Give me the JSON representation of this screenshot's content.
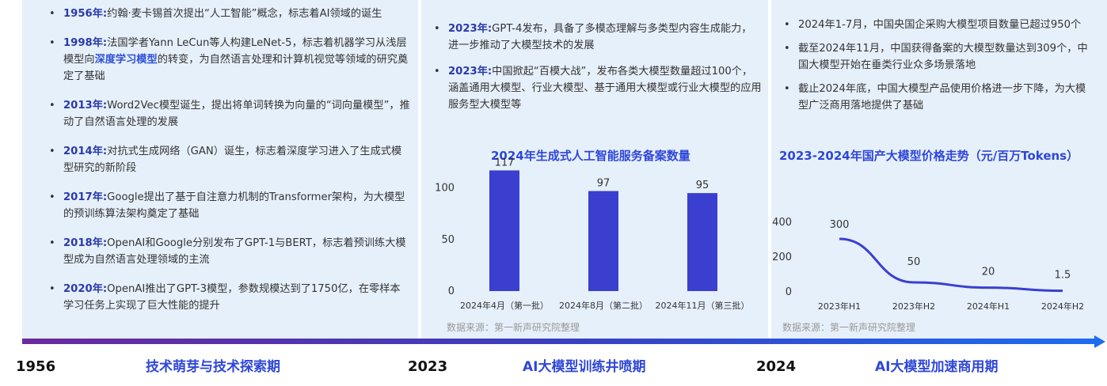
{
  "panel1": {
    "items": [
      {
        "year": "1956年:",
        "text": "约翰·麦卡锡首次提出“人工智能”概念，标志着AI领域的诞生"
      },
      {
        "year": "1998年:",
        "pre": "法国学者Yann LeCun等人构建LeNet-5，标志着机器学习从浅层模型向",
        "highlight": "深度学习模型",
        "post": "的转变，为自然语言处理和计算机视觉等领域的研究奠定了基础"
      },
      {
        "year": "2013年:",
        "text": "Word2Vec模型诞生，提出将单词转换为向量的“词向量模型”，推动了自然语言处理的发展"
      },
      {
        "year": "2014年:",
        "text": "对抗式生成网络（GAN）诞生，标志着深度学习进入了生成式模型研究的新阶段"
      },
      {
        "year": "2017年:",
        "text": "Google提出了基于自注意力机制的Transformer架构，为大模型的预训练算法架构奠定了基础"
      },
      {
        "year": "2018年:",
        "text": "OpenAI和Google分别发布了GPT-1与BERT，标志着预训练大模型成为自然语言处理领域的主流"
      },
      {
        "year": "2020年:",
        "text": "OpenAI推出了GPT-3模型，参数规模达到了1750亿，在零样本学习任务上实现了巨大性能的提升"
      }
    ]
  },
  "panel2": {
    "items": [
      {
        "year": "2023年:",
        "text": "GPT-4发布，具备了多模态理解与多类型内容生成能力，进一步推动了大模型技术的发展"
      },
      {
        "year": "2023年:",
        "text": "中国掀起“百模大战”，发布各类大模型数量超过100个，涵盖通用大模型、行业大模型、基于通用大模型或行业大模型的应用服务型大模型等"
      }
    ],
    "source": "数据来源：第一新声研究院整理"
  },
  "panel3": {
    "items": [
      {
        "text": "2024年1-7月，中国央国企采购大模型项目数量已超过950个"
      },
      {
        "text": "截至2024年11月，中国获得备案的大模型数量达到309个，中国大模型开始在垂类行业众多场景落地"
      },
      {
        "text": "截止2024年底，中国大模型产品使用价格进一步下降，为大模型广泛商用落地提供了基础"
      }
    ],
    "source": "数据来源：第一新声研究院整理"
  },
  "chart_data": [
    {
      "type": "bar",
      "title": "2024年生成式人工智能服务备案数量",
      "categories": [
        "2024年4月（第一批）",
        "2024年8月（第二批）",
        "2024年11月（第三批）"
      ],
      "values": [
        117,
        97,
        95
      ],
      "yticks": [
        0,
        50,
        100
      ],
      "ylim": [
        0,
        125
      ],
      "grid": false,
      "color": "#3a3fd0"
    },
    {
      "type": "line",
      "title": "2023-2024年国产大模型价格走势（元/百万Tokens）",
      "categories": [
        "2023年H1",
        "2023年H2",
        "2024年H1",
        "2024年H2"
      ],
      "values": [
        300,
        50,
        20,
        1.5
      ],
      "value_labels": [
        "300",
        "50",
        "20",
        "1.5"
      ],
      "yticks": [
        0,
        200,
        400
      ],
      "ylim": [
        0,
        400
      ],
      "grid": false,
      "color": "#3a3fd0"
    }
  ],
  "timeline": {
    "years": [
      "1956",
      "2023",
      "2024"
    ],
    "phases": [
      "技术萌芽与技术探索期",
      "AI大模型训练井喷期",
      "AI大模型加速商用期"
    ]
  }
}
